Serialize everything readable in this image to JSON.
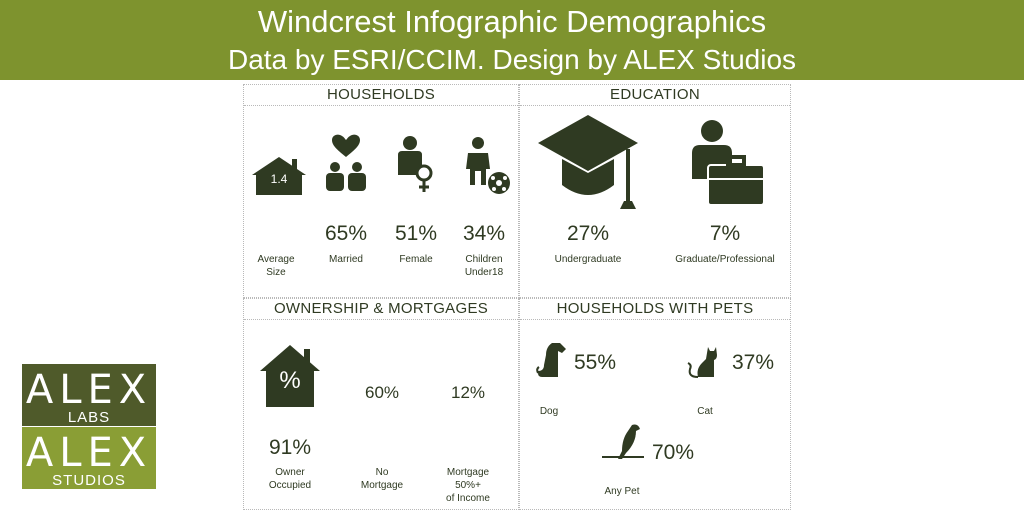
{
  "banner": {
    "title": "Windcrest Infographic Demographics",
    "subtitle": "Data by ESRI/CCIM. Design by ALEX Studios"
  },
  "households": {
    "heading": "HOUSEHOLDS",
    "average_size": {
      "value": "1.4",
      "label_1": "Average",
      "label_2": "Size"
    },
    "married": {
      "value": "65%",
      "label": "Married"
    },
    "female": {
      "value": "51%",
      "label": "Female"
    },
    "children": {
      "value": "34%",
      "label_1": "Children",
      "label_2": "Under18"
    }
  },
  "education": {
    "heading": "EDUCATION",
    "undergraduate": {
      "value": "27%",
      "label": "Undergraduate"
    },
    "graduate": {
      "value": "7%",
      "label": "Graduate/Professional"
    }
  },
  "ownership": {
    "heading": "OWNERSHIP & MORTGAGES",
    "house_icon_symbol": "%",
    "owner_occupied": {
      "value": "91%",
      "label_1": "Owner",
      "label_2": "Occupied"
    },
    "no_mortgage": {
      "value": "60%",
      "label_1": "No",
      "label_2": "Mortgage"
    },
    "mortgage_income": {
      "value": "12%",
      "label_1": "Mortgage",
      "label_2": "50%+",
      "label_3": "of Income"
    }
  },
  "pets": {
    "heading": "HOUSEHOLDS WITH PETS",
    "dog": {
      "value": "55%",
      "label": "Dog"
    },
    "cat": {
      "value": "37%",
      "label": "Cat"
    },
    "any_pet": {
      "value": "70%",
      "label": "Any Pet"
    }
  },
  "logos": {
    "labs_word": "ALEX",
    "labs_sub": "LABS",
    "studios_word": "ALEX",
    "studios_sub": "STUDIOS"
  },
  "colors": {
    "banner": "#7e932e",
    "icon": "#2f3a22",
    "logo_dark": "#4f5a2a",
    "logo_light": "#8a9e35"
  }
}
